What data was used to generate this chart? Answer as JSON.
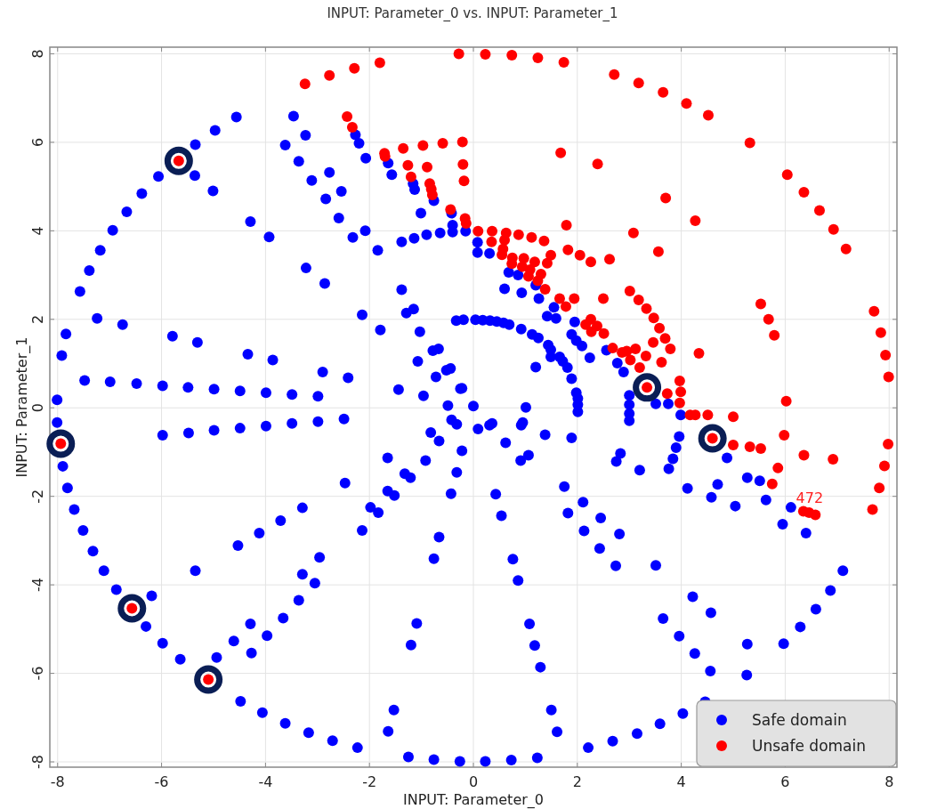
{
  "chart_data": {
    "type": "scatter",
    "title": "INPUT: Parameter_0 vs. INPUT: Parameter_1",
    "xlabel": "INPUT: Parameter_0",
    "ylabel": "INPUT: Parameter_1",
    "xlim": [
      -8.15,
      8.15
    ],
    "ylim": [
      -8.12,
      8.15
    ],
    "xticks": [
      -8,
      -6,
      -4,
      -2,
      0,
      2,
      4,
      6,
      8
    ],
    "yticks": [
      -8,
      -6,
      -4,
      -2,
      0,
      2,
      4,
      6,
      8
    ],
    "grid": true,
    "legend": "bottom right",
    "marker": "circle",
    "annotations": [
      {
        "text": "472",
        "x": 6.35,
        "y": -2.34
      }
    ],
    "series": [
      {
        "name": "Safe domain",
        "color": "#0000ff",
        "x": [
          -4.56,
          -4.97,
          -5.35,
          -6.06,
          -5.36,
          -5.01,
          -6.38,
          -6.67,
          -6.94,
          -7.18,
          -7.39,
          -7.57,
          -7.84,
          -7.92,
          -8.01,
          -7.24,
          -6.75,
          -5.79,
          -5.31,
          -4.34,
          -3.86,
          -2.9,
          -2.41,
          -7.48,
          -6.99,
          -6.48,
          -5.98,
          -5.49,
          -4.99,
          -4.49,
          -3.99,
          -3.49,
          -2.99,
          -1.44,
          -0.96,
          -0.49,
          0.0,
          -0.25,
          -4.29,
          -3.93,
          -3.46,
          -3.23,
          -3.62,
          -3.36,
          -3.11,
          -2.77,
          -2.54,
          -2.84,
          -2.59,
          -2.32,
          -2.08,
          -3.22,
          -2.86,
          -1.84,
          -1.38,
          -1.14,
          -0.9,
          -0.64,
          -0.4,
          -0.15,
          0.08,
          0.08,
          -2.14,
          -1.79,
          -1.38,
          -1.29,
          -1.15,
          -1.03,
          -0.78,
          -0.67,
          -1.07,
          -0.52,
          -0.44,
          -0.72,
          -0.33,
          -0.19,
          0.04,
          -2.27,
          -2.2,
          -2.07,
          -1.64,
          -1.57,
          -1.16,
          -1.13,
          -0.76,
          -1.01,
          -0.42,
          -0.4,
          0.31,
          0.68,
          0.86,
          0.6,
          0.93,
          1.2,
          1.26,
          1.55,
          1.42,
          1.59,
          1.95,
          1.89,
          1.98,
          2.09,
          2.24,
          2.56,
          2.77,
          2.89,
          3.0,
          3.51,
          3.75,
          0.18,
          0.32,
          0.45,
          0.58,
          0.69,
          0.92,
          1.13,
          1.25,
          1.44,
          1.49,
          1.49,
          1.66,
          1.72,
          1.81,
          1.89,
          1.98,
          2.01,
          1.2,
          -0.22,
          1.01,
          2.01,
          2.01,
          3.0,
          3.0,
          3.0,
          -8.01,
          -7.9,
          -7.81,
          -7.68,
          -7.51,
          -7.32,
          -7.11,
          -6.87,
          -6.19,
          -6.3,
          -5.98,
          -5.64,
          -4.94,
          -4.48,
          -4.06,
          -3.62,
          -3.17,
          -2.71,
          -2.23,
          -1.25,
          -0.76,
          -0.26,
          -5.98,
          -5.48,
          -4.99,
          -4.49,
          -3.99,
          -3.49,
          -2.99,
          -2.49,
          -2.47,
          -5.35,
          -4.53,
          -4.12,
          -3.71,
          -3.29,
          -2.14,
          -1.98,
          -1.83,
          -1.65,
          -1.52,
          -1.65,
          -1.32,
          -1.21,
          -0.92,
          -0.82,
          -0.66,
          -0.43,
          -0.32,
          -0.22,
          -0.42,
          -0.32,
          0.09,
          -2.96,
          -3.29,
          -3.05,
          -3.36,
          -3.66,
          -3.97,
          -4.29,
          -4.61,
          -4.27,
          -0.66,
          -0.76,
          -1.09,
          -1.2,
          -1.53,
          -1.64,
          0.31,
          0.36,
          0.62,
          0.92,
          0.95,
          0.91,
          1.06,
          1.38,
          1.89,
          0.43,
          0.54,
          1.75,
          1.82,
          2.11,
          2.13,
          2.45,
          2.43,
          2.81,
          2.74,
          3.51,
          0.76,
          0.86,
          1.08,
          1.18,
          1.29,
          1.5,
          1.61,
          0.23,
          0.73,
          1.23,
          2.21,
          2.68,
          3.15,
          3.59,
          4.03,
          4.46,
          7.11,
          6.87,
          6.59,
          6.29,
          5.97,
          5.27,
          5.26,
          4.56,
          4.26,
          3.96,
          3.65,
          4.22,
          4.57,
          2.83,
          2.75,
          3.2,
          3.76,
          3.84,
          3.9,
          3.96,
          4.12,
          4.58,
          4.7,
          4.88,
          5.04,
          5.27,
          5.51,
          5.63,
          5.95,
          6.11,
          6.4,
          3.99
        ],
        "values": [
          6.57,
          6.27,
          5.95,
          5.23,
          5.25,
          4.9,
          4.84,
          4.43,
          4.01,
          3.56,
          3.1,
          2.63,
          1.67,
          1.18,
          0.18,
          2.02,
          1.88,
          1.62,
          1.48,
          1.21,
          1.08,
          0.81,
          0.68,
          0.62,
          0.59,
          0.55,
          0.5,
          0.46,
          0.42,
          0.38,
          0.34,
          0.3,
          0.26,
          0.41,
          0.27,
          0.05,
          0.04,
          0.43,
          4.21,
          3.86,
          6.59,
          6.16,
          5.94,
          5.57,
          5.14,
          5.32,
          4.89,
          4.72,
          4.29,
          3.85,
          4.0,
          3.16,
          2.81,
          3.56,
          3.75,
          3.83,
          3.91,
          3.95,
          3.97,
          3.99,
          3.74,
          3.51,
          2.1,
          1.76,
          2.67,
          2.14,
          2.23,
          1.72,
          1.29,
          1.33,
          1.05,
          0.85,
          0.89,
          0.7,
          1.97,
          1.99,
          1.99,
          6.17,
          5.98,
          5.64,
          5.53,
          5.27,
          5.07,
          4.93,
          4.68,
          4.4,
          4.4,
          4.13,
          3.49,
          3.06,
          3.0,
          2.69,
          2.6,
          2.77,
          2.47,
          2.27,
          2.07,
          2.02,
          1.94,
          1.66,
          1.52,
          1.4,
          1.13,
          1.3,
          1.01,
          0.81,
          0.28,
          0.09,
          0.09,
          1.98,
          1.97,
          1.95,
          1.92,
          1.88,
          1.78,
          1.66,
          1.58,
          1.42,
          1.31,
          1.15,
          1.15,
          1.05,
          0.91,
          0.66,
          0.34,
          0.21,
          0.92,
          0.44,
          0.01,
          0.07,
          -0.09,
          0.07,
          -0.13,
          -0.29,
          -0.33,
          -1.32,
          -1.81,
          -2.3,
          -2.77,
          -3.24,
          -3.68,
          -4.11,
          -4.25,
          -4.94,
          -5.32,
          -5.68,
          -5.64,
          -6.63,
          -6.89,
          -7.13,
          -7.34,
          -7.52,
          -7.68,
          -7.89,
          -7.95,
          -7.99,
          -0.62,
          -0.57,
          -0.51,
          -0.46,
          -0.41,
          -0.35,
          -0.31,
          -0.25,
          -1.7,
          -3.68,
          -3.11,
          -2.83,
          -2.55,
          -2.26,
          -2.77,
          -2.25,
          -2.37,
          -1.88,
          -1.98,
          -1.13,
          -1.49,
          -1.58,
          -1.19,
          -0.56,
          -0.75,
          -1.94,
          -1.46,
          -0.97,
          -0.27,
          -0.37,
          -0.48,
          -3.38,
          -3.76,
          -3.96,
          -4.35,
          -4.75,
          -5.15,
          -4.88,
          -5.27,
          -5.54,
          -2.92,
          -3.41,
          -4.87,
          -5.36,
          -6.83,
          -7.31,
          -0.39,
          -0.35,
          -0.79,
          -0.39,
          -0.33,
          -1.19,
          -1.07,
          -0.61,
          -0.68,
          -1.95,
          -2.44,
          -1.78,
          -2.38,
          -2.13,
          -2.78,
          -2.49,
          -3.18,
          -2.85,
          -3.57,
          -3.56,
          -3.42,
          -3.9,
          -4.88,
          -5.37,
          -5.86,
          -6.83,
          -7.32,
          -7.99,
          -7.96,
          -7.91,
          -7.68,
          -7.53,
          -7.36,
          -7.14,
          -6.91,
          -6.64,
          -3.68,
          -4.13,
          -4.55,
          -4.95,
          -5.33,
          -5.34,
          -6.04,
          -5.95,
          -5.55,
          -5.16,
          -4.76,
          -4.27,
          -4.63,
          -1.03,
          -1.21,
          -1.41,
          -1.38,
          -1.15,
          -0.9,
          -0.65,
          -1.82,
          -2.02,
          -1.73,
          -1.13,
          -2.22,
          -1.58,
          -1.65,
          -2.08,
          -2.63,
          -2.25,
          -2.83,
          -0.16
        ]
      },
      {
        "name": "Unsafe domain",
        "color": "#ff0000",
        "x": [
          -3.24,
          -2.77,
          -2.29,
          -1.8,
          -0.28,
          -2.43,
          -2.33,
          -1.71,
          -1.7,
          -1.35,
          -0.97,
          -0.59,
          -0.21,
          -1.26,
          -0.89,
          -0.2,
          -0.18,
          -1.2,
          -0.84,
          -0.81,
          -0.79,
          -0.44,
          -0.16,
          -0.14,
          0.09,
          0.23,
          0.74,
          1.24,
          1.74,
          2.71,
          3.18,
          3.65,
          4.1,
          4.52,
          5.32,
          6.04,
          6.36,
          6.66,
          6.93,
          7.17,
          1.68,
          2.39,
          3.7,
          4.27,
          3.08,
          3.56,
          1.79,
          0.36,
          0.63,
          0.87,
          1.12,
          1.36,
          0.35,
          0.6,
          0.57,
          0.55,
          0.75,
          0.97,
          1.18,
          1.49,
          1.42,
          1.82,
          2.05,
          2.26,
          2.62,
          0.74,
          0.94,
          1.09,
          1.3,
          1.06,
          1.24,
          1.38,
          1.66,
          1.94,
          1.78,
          2.5,
          3.01,
          3.18,
          3.33,
          3.47,
          3.58,
          3.69,
          3.79,
          3.46,
          3.32,
          3.62,
          3.12,
          2.16,
          2.26,
          2.38,
          2.27,
          2.51,
          2.68,
          2.86,
          2.95,
          3.02,
          3.2,
          3.97,
          3.99,
          3.73,
          3.97,
          4.34,
          5.53,
          5.68,
          5.79,
          7.71,
          7.84,
          7.93,
          7.99,
          6.02,
          4.17,
          4.27,
          4.51,
          5.0,
          5.0,
          5.32,
          5.53,
          5.98,
          6.36,
          6.92,
          5.86,
          5.75,
          7.98,
          7.91,
          7.81,
          7.68,
          6.35,
          6.46,
          6.58,
          -5.67,
          3.34,
          -7.94,
          -6.57,
          -5.1,
          4.6
        ],
        "values": [
          7.32,
          7.51,
          7.67,
          7.8,
          8.0,
          6.58,
          6.34,
          5.75,
          5.68,
          5.86,
          5.93,
          5.98,
          6.01,
          5.48,
          5.44,
          5.5,
          5.13,
          5.22,
          5.07,
          4.94,
          4.81,
          4.48,
          4.28,
          4.17,
          3.99,
          7.99,
          7.97,
          7.91,
          7.81,
          7.53,
          7.34,
          7.13,
          6.88,
          6.61,
          5.99,
          5.27,
          4.87,
          4.46,
          4.03,
          3.59,
          5.76,
          5.51,
          4.74,
          4.23,
          3.95,
          3.53,
          4.13,
          3.99,
          3.95,
          3.91,
          3.85,
          3.77,
          3.75,
          3.79,
          3.59,
          3.46,
          3.39,
          3.38,
          3.3,
          3.45,
          3.27,
          3.57,
          3.45,
          3.3,
          3.36,
          3.26,
          3.19,
          3.12,
          3.02,
          2.97,
          2.87,
          2.68,
          2.47,
          2.47,
          2.29,
          2.47,
          2.64,
          2.44,
          2.24,
          2.03,
          1.8,
          1.57,
          1.33,
          1.48,
          1.17,
          1.03,
          1.33,
          1.88,
          2.0,
          1.85,
          1.72,
          1.68,
          1.35,
          1.25,
          1.28,
          1.08,
          0.91,
          0.61,
          0.36,
          0.32,
          0.11,
          1.23,
          2.35,
          2.0,
          1.64,
          2.18,
          1.7,
          1.19,
          0.7,
          0.15,
          -0.16,
          -0.16,
          -0.16,
          -0.2,
          -0.84,
          -0.88,
          -0.92,
          -0.62,
          -1.07,
          -1.16,
          -1.36,
          -1.72,
          -0.82,
          -1.31,
          -1.81,
          -2.3,
          -2.34,
          -2.37,
          -2.42,
          5.58,
          0.46,
          -0.81,
          -4.53,
          -6.14,
          -0.69
        ]
      },
      {
        "color": "#0a1e55",
        "x": [
          -5.67,
          3.34,
          -7.94,
          -6.57,
          -5.1,
          4.6
        ],
        "values": [
          5.58,
          0.46,
          -0.81,
          -4.53,
          -6.14,
          -0.69
        ]
      }
    ]
  }
}
